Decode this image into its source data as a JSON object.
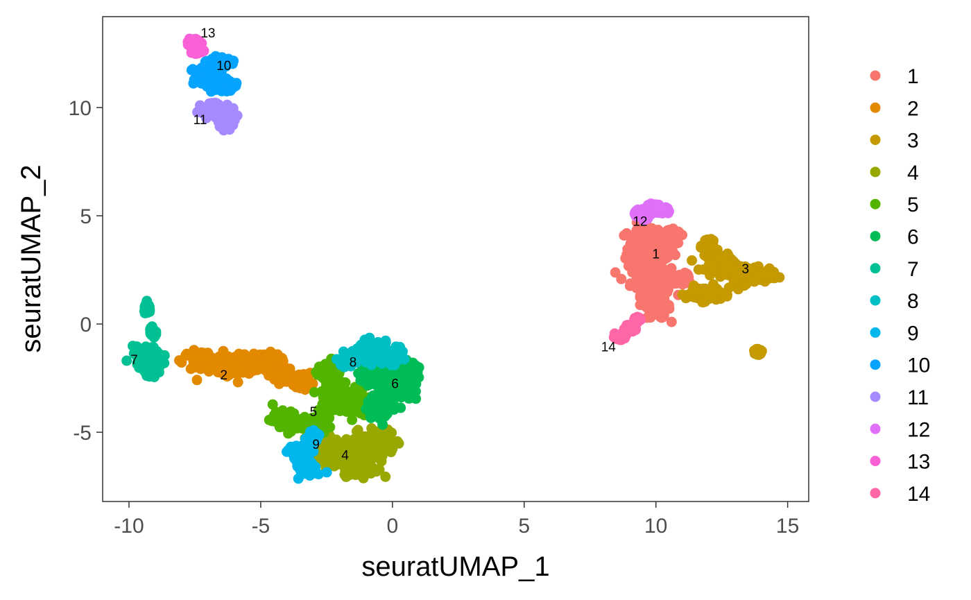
{
  "chart_data": {
    "type": "scatter",
    "title": "",
    "xlabel": "seuratUMAP_1",
    "ylabel": "seuratUMAP_2",
    "xlim": [
      -11,
      15.8
    ],
    "ylim": [
      -8.2,
      14.2
    ],
    "x_ticks": [
      -10,
      -5,
      0,
      5,
      10,
      15
    ],
    "x_tick_labels": [
      "-10",
      "-5",
      "0",
      "5",
      "10",
      "15"
    ],
    "y_ticks": [
      -5,
      0,
      5,
      10
    ],
    "y_tick_labels": [
      "-5",
      "0",
      "5",
      "10"
    ],
    "grid": false,
    "legend_position": "right",
    "series": [
      {
        "name": "1",
        "color": "#F8766D",
        "label_pos": [
          10,
          3.2
        ],
        "centers": [
          [
            9.8,
            3.5
          ],
          [
            9.8,
            2.0
          ],
          [
            10.1,
            0.8
          ],
          [
            10.6,
            4.0
          ],
          [
            11.0,
            2.1
          ]
        ],
        "spreads": [
          [
            0.8,
            1.0
          ],
          [
            0.7,
            0.6
          ],
          [
            0.4,
            0.5
          ],
          [
            0.3,
            0.3
          ],
          [
            0.3,
            0.2
          ]
        ]
      },
      {
        "name": "2",
        "color": "#E38900",
        "label_pos": [
          -6.4,
          -2.4
        ],
        "centers": [
          [
            -7.2,
            -1.7
          ],
          [
            -5.8,
            -1.9
          ],
          [
            -4.8,
            -1.8
          ],
          [
            -4.2,
            -2.4
          ],
          [
            -3.4,
            -2.6
          ]
        ],
        "spreads": [
          [
            0.7,
            0.4
          ],
          [
            0.6,
            0.5
          ],
          [
            0.5,
            0.4
          ],
          [
            0.4,
            0.3
          ],
          [
            0.3,
            0.3
          ]
        ]
      },
      {
        "name": "3",
        "color": "#C49A00",
        "label_pos": [
          13.4,
          2.5
        ],
        "centers": [
          [
            13.3,
            2.3
          ],
          [
            12.4,
            2.9
          ],
          [
            11.8,
            1.4
          ],
          [
            12.0,
            3.6
          ],
          [
            14.2,
            2.2
          ],
          [
            13.9,
            -1.3
          ]
        ],
        "spreads": [
          [
            0.7,
            0.4
          ],
          [
            0.5,
            0.4
          ],
          [
            0.6,
            0.3
          ],
          [
            0.2,
            0.2
          ],
          [
            0.3,
            0.2
          ],
          [
            0.1,
            0.1
          ]
        ]
      },
      {
        "name": "4",
        "color": "#99A800",
        "label_pos": [
          -1.8,
          -6.1
        ],
        "centers": [
          [
            -1.8,
            -6.0
          ],
          [
            -0.5,
            -5.4
          ],
          [
            -2.6,
            -5.4
          ],
          [
            -1.2,
            -6.7
          ]
        ],
        "spreads": [
          [
            0.9,
            0.6
          ],
          [
            0.6,
            0.5
          ],
          [
            0.5,
            0.4
          ],
          [
            0.6,
            0.3
          ]
        ]
      },
      {
        "name": "5",
        "color": "#53B400",
        "label_pos": [
          -3,
          -4.1
        ],
        "centers": [
          [
            -2.2,
            -3.3
          ],
          [
            -1.3,
            -3.6
          ],
          [
            -4.0,
            -4.5
          ],
          [
            -3.1,
            -4.6
          ],
          [
            -2.4,
            -2.2
          ]
        ],
        "spreads": [
          [
            0.6,
            0.7
          ],
          [
            0.4,
            0.5
          ],
          [
            0.5,
            0.4
          ],
          [
            0.4,
            0.3
          ],
          [
            0.4,
            0.3
          ]
        ]
      },
      {
        "name": "6",
        "color": "#00BC56",
        "label_pos": [
          0.1,
          -2.8
        ],
        "centers": [
          [
            0.1,
            -2.8
          ],
          [
            -0.4,
            -3.8
          ],
          [
            0.6,
            -2.2
          ],
          [
            -0.9,
            -2.4
          ]
        ],
        "spreads": [
          [
            0.6,
            0.7
          ],
          [
            0.5,
            0.5
          ],
          [
            0.3,
            0.4
          ],
          [
            0.3,
            0.4
          ]
        ]
      },
      {
        "name": "7",
        "color": "#00C094",
        "label_pos": [
          -9.8,
          -1.7
        ],
        "centers": [
          [
            -9.3,
            -1.5
          ],
          [
            -9.1,
            -2.0
          ],
          [
            -9.3,
            0.7
          ],
          [
            -9.1,
            -0.4
          ]
        ],
        "spreads": [
          [
            0.5,
            0.4
          ],
          [
            0.3,
            0.3
          ],
          [
            0.1,
            0.2
          ],
          [
            0.1,
            0.2
          ]
        ]
      },
      {
        "name": "8",
        "color": "#00BFC4",
        "label_pos": [
          -1.5,
          -1.8
        ],
        "centers": [
          [
            -0.7,
            -1.2
          ],
          [
            -1.5,
            -1.6
          ],
          [
            0.0,
            -1.5
          ]
        ],
        "spreads": [
          [
            0.6,
            0.4
          ],
          [
            0.4,
            0.3
          ],
          [
            0.3,
            0.3
          ]
        ]
      },
      {
        "name": "9",
        "color": "#00B6EB",
        "label_pos": [
          -2.9,
          -5.6
        ],
        "centers": [
          [
            -3.5,
            -6.0
          ],
          [
            -3.2,
            -6.7
          ],
          [
            -3.0,
            -5.2
          ]
        ],
        "spreads": [
          [
            0.4,
            0.4
          ],
          [
            0.3,
            0.3
          ],
          [
            0.2,
            0.2
          ]
        ]
      },
      {
        "name": "10",
        "color": "#06A4FF",
        "label_pos": [
          -6.4,
          11.9
        ],
        "centers": [
          [
            -7.0,
            11.4
          ],
          [
            -6.6,
            12.1
          ],
          [
            -6.4,
            11.0
          ]
        ],
        "spreads": [
          [
            0.5,
            0.5
          ],
          [
            0.4,
            0.2
          ],
          [
            0.4,
            0.2
          ]
        ]
      },
      {
        "name": "11",
        "color": "#A58AFF",
        "label_pos": [
          -7.3,
          9.4
        ],
        "centers": [
          [
            -6.7,
            9.9
          ],
          [
            -6.3,
            9.4
          ]
        ],
        "spreads": [
          [
            0.5,
            0.3
          ],
          [
            0.3,
            0.3
          ]
        ]
      },
      {
        "name": "12",
        "color": "#DF70F8",
        "label_pos": [
          9.4,
          4.7
        ],
        "centers": [
          [
            10.0,
            5.3
          ],
          [
            9.5,
            5.1
          ]
        ],
        "spreads": [
          [
            0.4,
            0.2
          ],
          [
            0.3,
            0.2
          ]
        ]
      },
      {
        "name": "13",
        "color": "#FB61D7",
        "label_pos": [
          -7.0,
          13.4
        ],
        "centers": [
          [
            -7.5,
            13.0
          ],
          [
            -7.4,
            12.6
          ]
        ],
        "spreads": [
          [
            0.2,
            0.2
          ],
          [
            0.2,
            0.1
          ]
        ]
      },
      {
        "name": "14",
        "color": "#FF66A8",
        "label_pos": [
          8.2,
          -1.1
        ],
        "centers": [
          [
            8.6,
            -0.6
          ],
          [
            9.0,
            -0.2
          ],
          [
            9.3,
            0.2
          ]
        ],
        "spreads": [
          [
            0.2,
            0.1
          ],
          [
            0.2,
            0.1
          ],
          [
            0.1,
            0.1
          ]
        ]
      }
    ]
  }
}
